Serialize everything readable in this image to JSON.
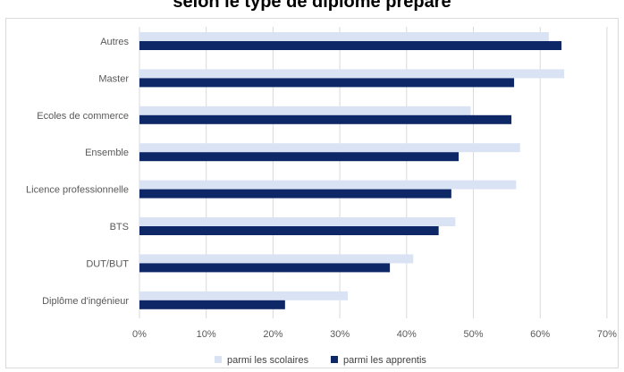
{
  "chart_data": {
    "type": "bar",
    "orientation": "horizontal",
    "title": "selon le type de  diplôme préparé",
    "categories": [
      "Autres",
      "Master",
      "Ecoles de commerce",
      "Ensemble",
      "Licence professionnelle",
      "BTS",
      "DUT/BUT",
      "Diplôme d'ingénieur"
    ],
    "series": [
      {
        "name": "parmi les scolaires",
        "color": "#dae3f3",
        "values": [
          61.3,
          63.6,
          49.6,
          57.0,
          56.4,
          47.3,
          41.0,
          31.2
        ]
      },
      {
        "name": "parmi les apprentis",
        "color": "#0e2766",
        "values": [
          63.2,
          56.1,
          55.7,
          47.8,
          46.7,
          44.8,
          37.5,
          21.8
        ]
      }
    ],
    "xlim": [
      0,
      70
    ],
    "x_ticks": [
      "0%",
      "10%",
      "20%",
      "30%",
      "40%",
      "50%",
      "60%",
      "70%"
    ],
    "grid": true,
    "legend_position": "bottom"
  }
}
